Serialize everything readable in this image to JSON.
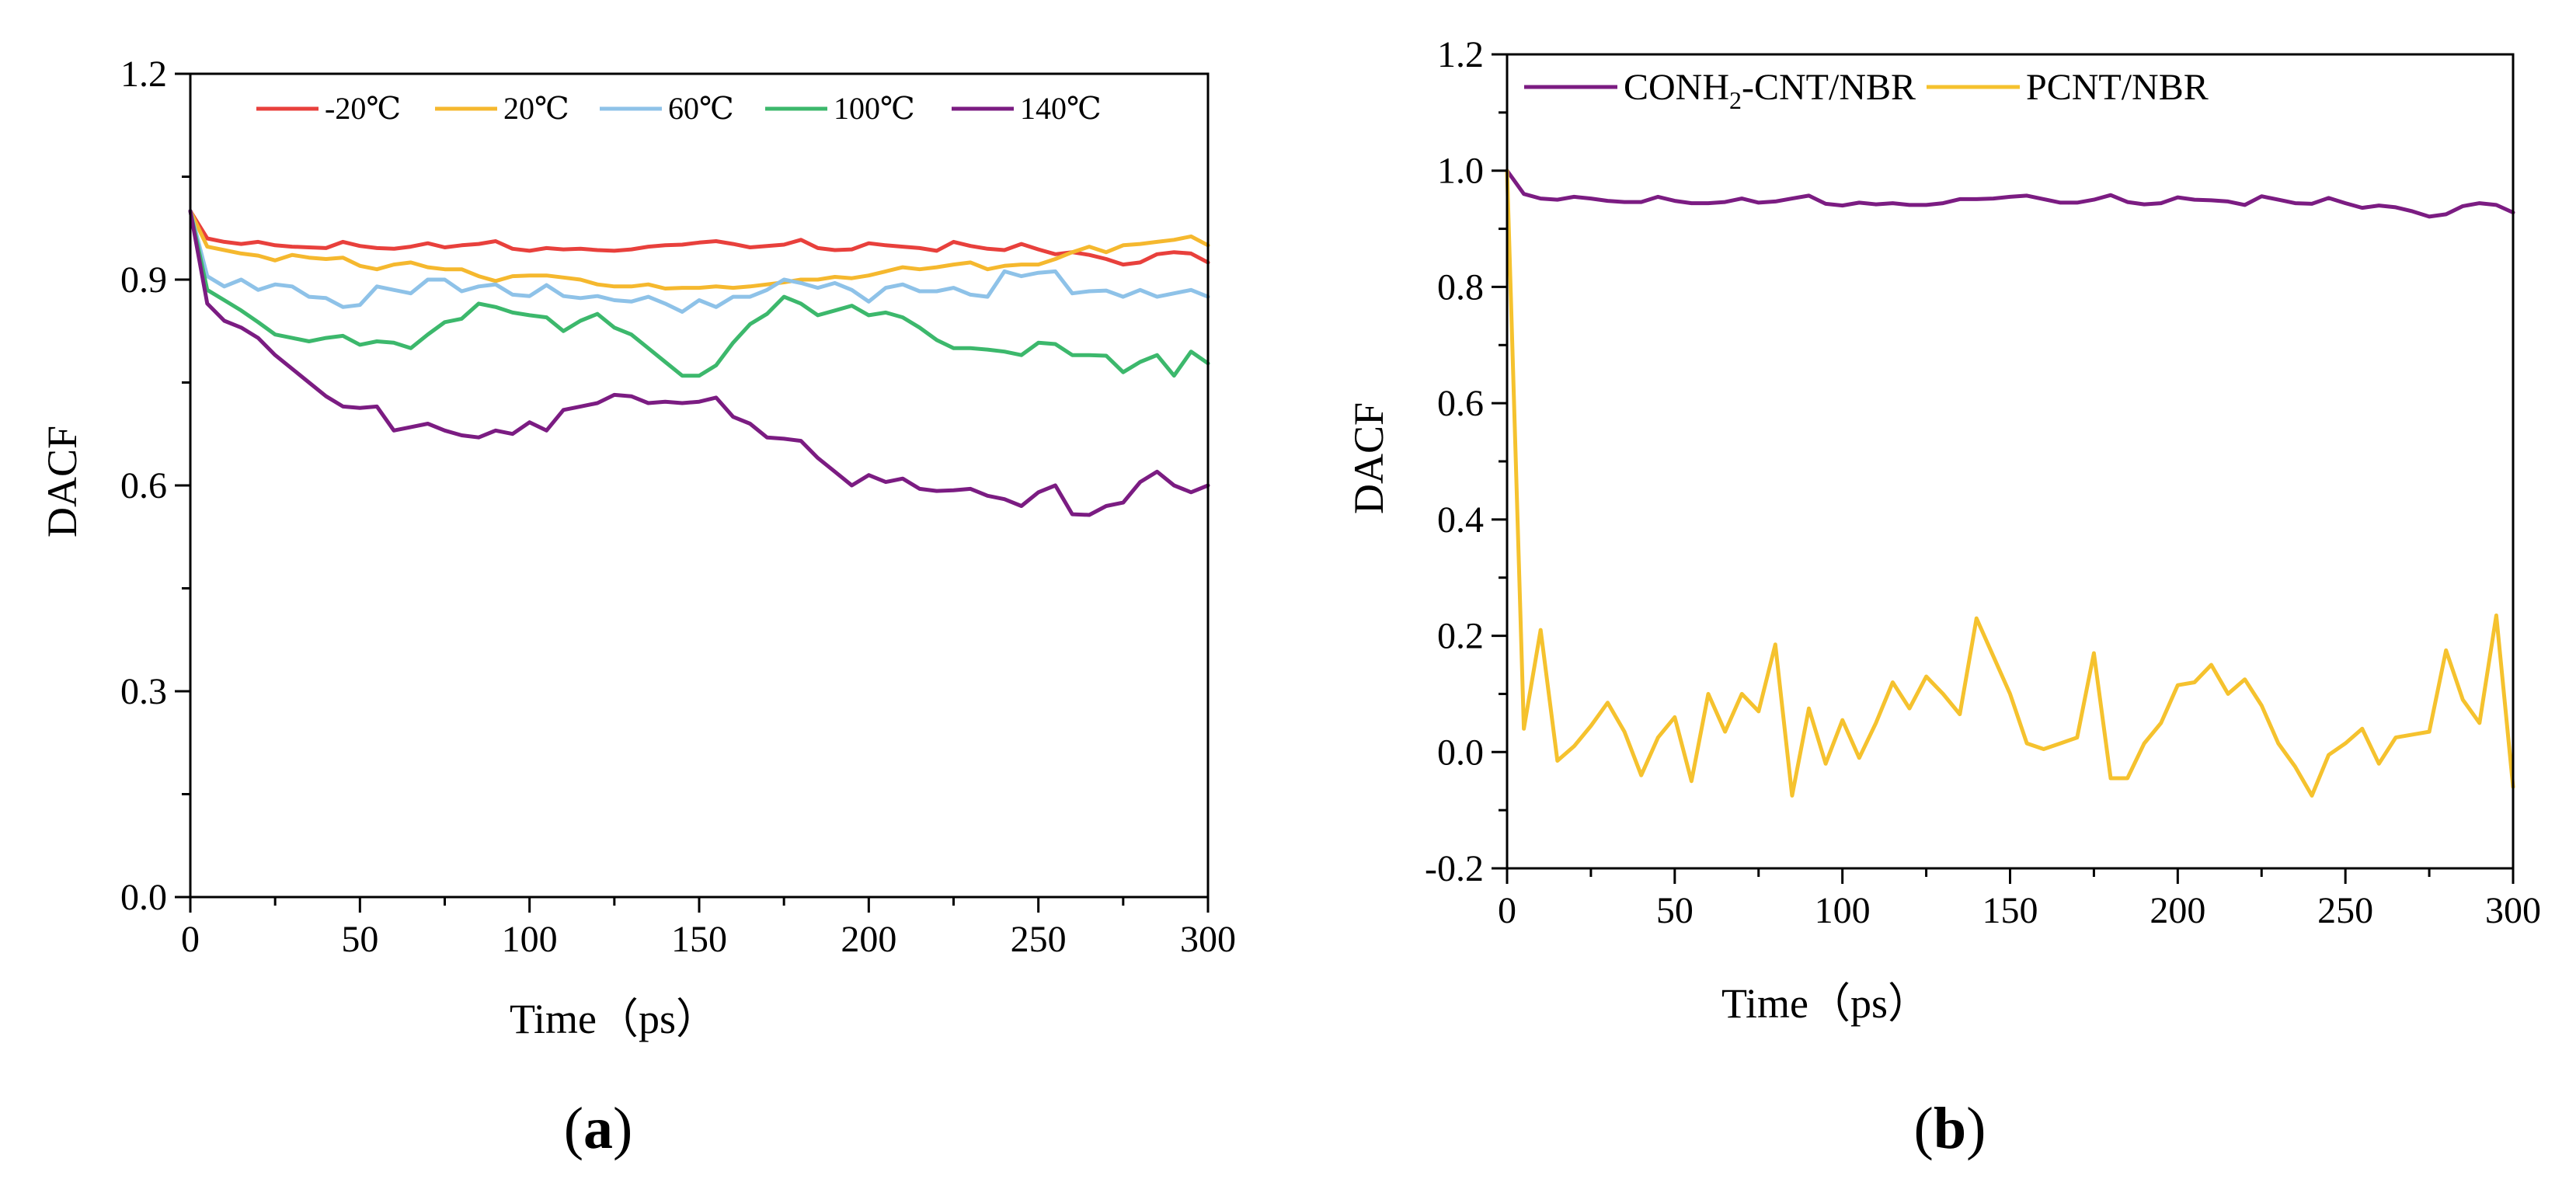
{
  "chart_data": [
    {
      "panel": "a",
      "type": "line",
      "caption_open": "(",
      "caption_letter": "a",
      "caption_close": ")",
      "xlabel": "Time（ps）",
      "ylabel": "DACF",
      "xlim": [
        0,
        300
      ],
      "ylim": [
        0,
        1.2
      ],
      "xticks": [
        "0",
        "50",
        "100",
        "150",
        "200",
        "250",
        "300"
      ],
      "yticks": [
        "0.0",
        "0.3",
        "0.6",
        "0.9",
        "1.2"
      ],
      "x": [
        0,
        5,
        10,
        15,
        20,
        25,
        30,
        35,
        40,
        45,
        50,
        55,
        60,
        65,
        70,
        75,
        80,
        85,
        90,
        95,
        100,
        105,
        110,
        115,
        120,
        125,
        130,
        135,
        140,
        145,
        150,
        155,
        160,
        165,
        170,
        175,
        180,
        185,
        190,
        195,
        200,
        205,
        210,
        215,
        220,
        225,
        230,
        235,
        240,
        245,
        250,
        255,
        260,
        265,
        270,
        275,
        280,
        285,
        290,
        295,
        300
      ],
      "series": [
        {
          "name": "-20℃",
          "color": "#e8403c",
          "values": [
            1.0,
            0.96,
            0.955,
            0.952,
            0.955,
            0.95,
            0.948,
            0.947,
            0.946,
            0.955,
            0.949,
            0.946,
            0.945,
            0.948,
            0.953,
            0.947,
            0.95,
            0.952,
            0.956,
            0.945,
            0.942,
            0.946,
            0.944,
            0.945,
            0.943,
            0.942,
            0.944,
            0.948,
            0.95,
            0.951,
            0.954,
            0.956,
            0.952,
            0.947,
            0.949,
            0.951,
            0.958,
            0.946,
            0.943,
            0.944,
            0.953,
            0.95,
            0.948,
            0.946,
            0.942,
            0.955,
            0.949,
            0.945,
            0.943,
            0.952,
            0.944,
            0.937,
            0.94,
            0.936,
            0.93,
            0.922,
            0.925,
            0.937,
            0.94,
            0.938,
            0.925
          ]
        },
        {
          "name": "20℃",
          "color": "#f5b82e",
          "values": [
            1.0,
            0.948,
            0.943,
            0.938,
            0.935,
            0.928,
            0.936,
            0.932,
            0.93,
            0.932,
            0.92,
            0.915,
            0.922,
            0.925,
            0.918,
            0.915,
            0.915,
            0.905,
            0.898,
            0.905,
            0.906,
            0.906,
            0.903,
            0.9,
            0.893,
            0.89,
            0.89,
            0.893,
            0.887,
            0.888,
            0.888,
            0.89,
            0.888,
            0.89,
            0.893,
            0.896,
            0.9,
            0.9,
            0.904,
            0.902,
            0.906,
            0.912,
            0.918,
            0.915,
            0.918,
            0.922,
            0.925,
            0.915,
            0.92,
            0.922,
            0.922,
            0.93,
            0.94,
            0.948,
            0.94,
            0.95,
            0.952,
            0.955,
            0.958,
            0.963,
            0.95
          ]
        },
        {
          "name": "60℃",
          "color": "#8ec2e8",
          "values": [
            1.0,
            0.905,
            0.89,
            0.9,
            0.885,
            0.893,
            0.89,
            0.875,
            0.873,
            0.86,
            0.863,
            0.89,
            0.885,
            0.88,
            0.9,
            0.9,
            0.883,
            0.89,
            0.893,
            0.878,
            0.876,
            0.892,
            0.876,
            0.873,
            0.876,
            0.87,
            0.868,
            0.875,
            0.865,
            0.853,
            0.87,
            0.86,
            0.875,
            0.875,
            0.885,
            0.9,
            0.895,
            0.888,
            0.895,
            0.885,
            0.868,
            0.888,
            0.893,
            0.883,
            0.883,
            0.888,
            0.878,
            0.875,
            0.912,
            0.905,
            0.91,
            0.912,
            0.88,
            0.883,
            0.884,
            0.875,
            0.885,
            0.875,
            0.88,
            0.885,
            0.875
          ]
        },
        {
          "name": "100℃",
          "color": "#3cb86c",
          "values": [
            1.0,
            0.885,
            0.87,
            0.855,
            0.838,
            0.82,
            0.815,
            0.81,
            0.815,
            0.818,
            0.805,
            0.81,
            0.808,
            0.8,
            0.82,
            0.838,
            0.843,
            0.865,
            0.86,
            0.852,
            0.848,
            0.845,
            0.825,
            0.84,
            0.85,
            0.83,
            0.82,
            0.8,
            0.78,
            0.76,
            0.76,
            0.775,
            0.808,
            0.835,
            0.85,
            0.875,
            0.865,
            0.848,
            0.855,
            0.862,
            0.848,
            0.852,
            0.845,
            0.83,
            0.812,
            0.8,
            0.8,
            0.798,
            0.795,
            0.79,
            0.808,
            0.806,
            0.79,
            0.79,
            0.789,
            0.765,
            0.78,
            0.79,
            0.76,
            0.795,
            0.778
          ]
        },
        {
          "name": "140℃",
          "color": "#7b1c82",
          "values": [
            1.0,
            0.865,
            0.84,
            0.83,
            0.815,
            0.79,
            0.77,
            0.75,
            0.73,
            0.715,
            0.713,
            0.715,
            0.68,
            0.685,
            0.69,
            0.68,
            0.673,
            0.67,
            0.68,
            0.675,
            0.692,
            0.68,
            0.71,
            0.715,
            0.72,
            0.732,
            0.73,
            0.72,
            0.722,
            0.72,
            0.722,
            0.728,
            0.7,
            0.69,
            0.67,
            0.668,
            0.665,
            0.64,
            0.62,
            0.6,
            0.615,
            0.605,
            0.61,
            0.595,
            0.592,
            0.593,
            0.595,
            0.585,
            0.58,
            0.57,
            0.59,
            0.6,
            0.558,
            0.557,
            0.57,
            0.575,
            0.605,
            0.62,
            0.6,
            0.59,
            0.6
          ]
        }
      ]
    },
    {
      "panel": "b",
      "type": "line",
      "caption_open": "(",
      "caption_letter": "b",
      "caption_close": ")",
      "xlabel": "Time（ps）",
      "ylabel": "DACF",
      "xlim": [
        0,
        300
      ],
      "ylim": [
        -0.2,
        1.2
      ],
      "xticks": [
        "0",
        "50",
        "100",
        "150",
        "200",
        "250",
        "300"
      ],
      "yticks": [
        "-0.2",
        "0.0",
        "0.2",
        "0.4",
        "0.6",
        "0.8",
        "1.0",
        "1.2"
      ],
      "x": [
        0,
        5,
        10,
        15,
        20,
        25,
        30,
        35,
        40,
        45,
        50,
        55,
        60,
        65,
        70,
        75,
        80,
        85,
        90,
        95,
        100,
        105,
        110,
        115,
        120,
        125,
        130,
        135,
        140,
        145,
        150,
        155,
        160,
        165,
        170,
        175,
        180,
        185,
        190,
        195,
        200,
        205,
        210,
        215,
        220,
        225,
        230,
        235,
        240,
        245,
        250,
        255,
        260,
        265,
        270,
        275,
        280,
        285,
        290,
        295,
        300
      ],
      "series": [
        {
          "name": "CONH2-CNT/NBR",
          "legend_prefix": "CONH",
          "legend_sub": "2",
          "legend_suffix": "-CNT/NBR",
          "color": "#7b1c82",
          "values": [
            1.0,
            0.96,
            0.952,
            0.95,
            0.955,
            0.952,
            0.948,
            0.946,
            0.946,
            0.955,
            0.948,
            0.944,
            0.944,
            0.946,
            0.952,
            0.945,
            0.947,
            0.952,
            0.957,
            0.943,
            0.94,
            0.945,
            0.942,
            0.944,
            0.941,
            0.941,
            0.944,
            0.951,
            0.951,
            0.952,
            0.955,
            0.957,
            0.951,
            0.945,
            0.945,
            0.95,
            0.958,
            0.946,
            0.942,
            0.944,
            0.954,
            0.95,
            0.949,
            0.947,
            0.941,
            0.956,
            0.95,
            0.944,
            0.943,
            0.953,
            0.944,
            0.936,
            0.94,
            0.937,
            0.93,
            0.921,
            0.925,
            0.939,
            0.944,
            0.941,
            0.928
          ]
        },
        {
          "name": "PCNT/NBR",
          "color": "#f5c22e",
          "values": [
            1.0,
            0.04,
            0.21,
            -0.015,
            0.01,
            0.045,
            0.085,
            0.035,
            -0.04,
            0.025,
            0.06,
            -0.05,
            0.1,
            0.035,
            0.1,
            0.07,
            0.185,
            -0.075,
            0.075,
            -0.02,
            0.055,
            -0.01,
            0.05,
            0.12,
            0.075,
            0.13,
            0.1,
            0.065,
            0.23,
            0.165,
            0.1,
            0.015,
            0.005,
            0.015,
            0.025,
            0.17,
            -0.045,
            -0.045,
            0.015,
            0.05,
            0.115,
            0.12,
            0.15,
            0.1,
            0.125,
            0.08,
            0.015,
            -0.025,
            -0.075,
            -0.005,
            0.015,
            0.04,
            -0.02,
            0.025,
            0.03,
            0.035,
            0.175,
            0.09,
            0.05,
            0.235,
            -0.06
          ]
        }
      ]
    }
  ]
}
